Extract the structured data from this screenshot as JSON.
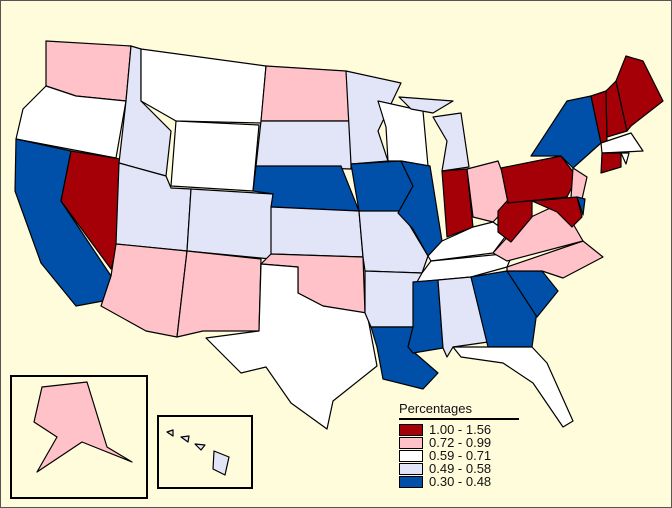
{
  "legend": {
    "title": "Percentages",
    "classes": [
      {
        "label": "1.00 - 1.56",
        "color": "#a50008"
      },
      {
        "label": "0.72 - 0.99",
        "color": "#ffc2c8"
      },
      {
        "label": "0.59 - 0.71",
        "color": "#ffffff"
      },
      {
        "label": "0.49 - 0.58",
        "color": "#e2e4f8"
      },
      {
        "label": "0.30 - 0.48",
        "color": "#0050aa"
      }
    ]
  },
  "background_color": "#fffcdc",
  "states": {
    "WA": 1,
    "OR": 2,
    "CA": 4,
    "NV": 0,
    "ID": 3,
    "MT": 2,
    "WY": 2,
    "UT": 3,
    "AZ": 1,
    "CO": 3,
    "NM": 1,
    "ND": 1,
    "SD": 3,
    "NE": 4,
    "KS": 3,
    "OK": 1,
    "TX": 2,
    "MN": 3,
    "IA": 4,
    "MO": 3,
    "AR": 3,
    "LA": 4,
    "WI": 2,
    "IL": 4,
    "MI": 3,
    "IN": 0,
    "OH": 1,
    "KY": 2,
    "TN": 2,
    "MS": 4,
    "AL": 3,
    "GA": 4,
    "FL": 2,
    "SC": 4,
    "NC": 1,
    "VA": 1,
    "WV": 0,
    "PA": 0,
    "NY": 4,
    "NJ": 1,
    "MD": 0,
    "DE": 4,
    "VT": 0,
    "NH": 0,
    "ME": 0,
    "MA": 2,
    "CT": 0,
    "RI": 2,
    "AK": 1,
    "HI": 3
  }
}
